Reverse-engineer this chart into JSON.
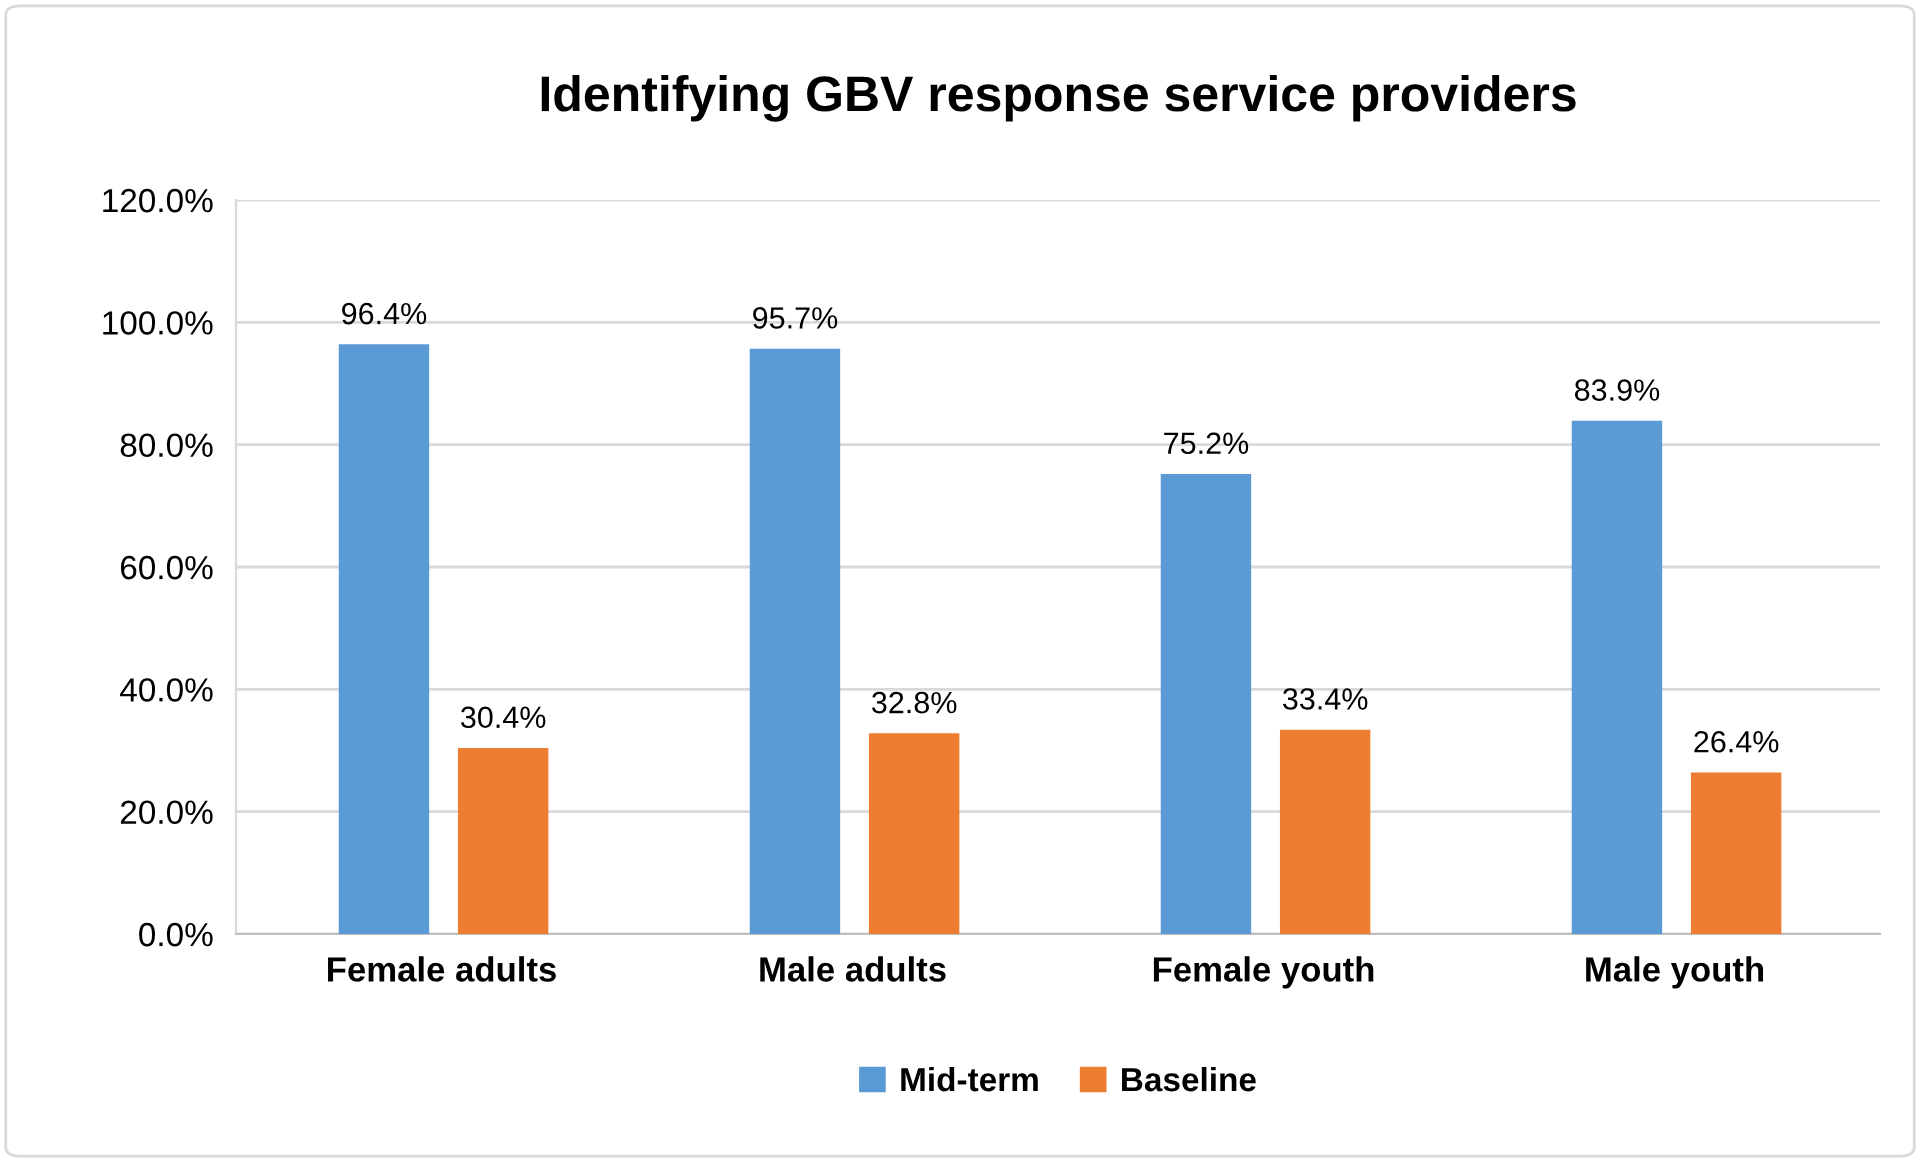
{
  "chart_data": {
    "type": "bar",
    "title": "Identifying GBV response service providers",
    "categories": [
      "Female adults",
      "Male adults",
      "Female youth",
      "Male youth"
    ],
    "series": [
      {
        "name": "Mid-term",
        "color": "#5b9bd5",
        "values": [
          96.4,
          95.7,
          75.2,
          83.9
        ],
        "value_labels": [
          "96.4%",
          "95.7%",
          "75.2%",
          "83.9%"
        ]
      },
      {
        "name": "Baseline",
        "color": "#ed7d31",
        "values": [
          30.4,
          32.8,
          33.4,
          26.4
        ],
        "value_labels": [
          "30.4%",
          "32.8%",
          "33.4%",
          "26.4%"
        ]
      }
    ],
    "ylim": [
      0,
      120
    ],
    "yticks": [
      {
        "value": 0,
        "label": "0.0%"
      },
      {
        "value": 20,
        "label": "20.0%"
      },
      {
        "value": 40,
        "label": "40.0%"
      },
      {
        "value": 60,
        "label": "60.0%"
      },
      {
        "value": 80,
        "label": "80.0%"
      },
      {
        "value": 100,
        "label": "100.0%"
      },
      {
        "value": 120,
        "label": "120.0%"
      }
    ],
    "grid": "y",
    "legend": "bottom"
  }
}
